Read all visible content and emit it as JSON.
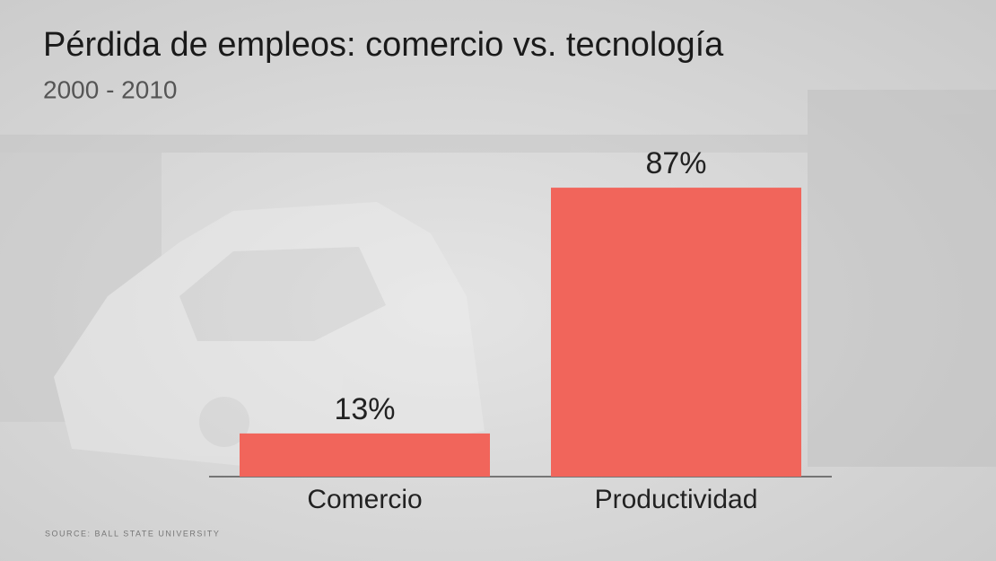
{
  "chart_data": {
    "type": "bar",
    "title": "Pérdida de empleos: comercio vs. tecnología",
    "subtitle": "2000 - 2010",
    "source": "SOURCE: BALL STATE UNIVERSITY",
    "categories": [
      "Comercio",
      "Productividad"
    ],
    "values": [
      13,
      87
    ],
    "value_labels": [
      "13%",
      "87%"
    ],
    "color": "#f1655b"
  }
}
